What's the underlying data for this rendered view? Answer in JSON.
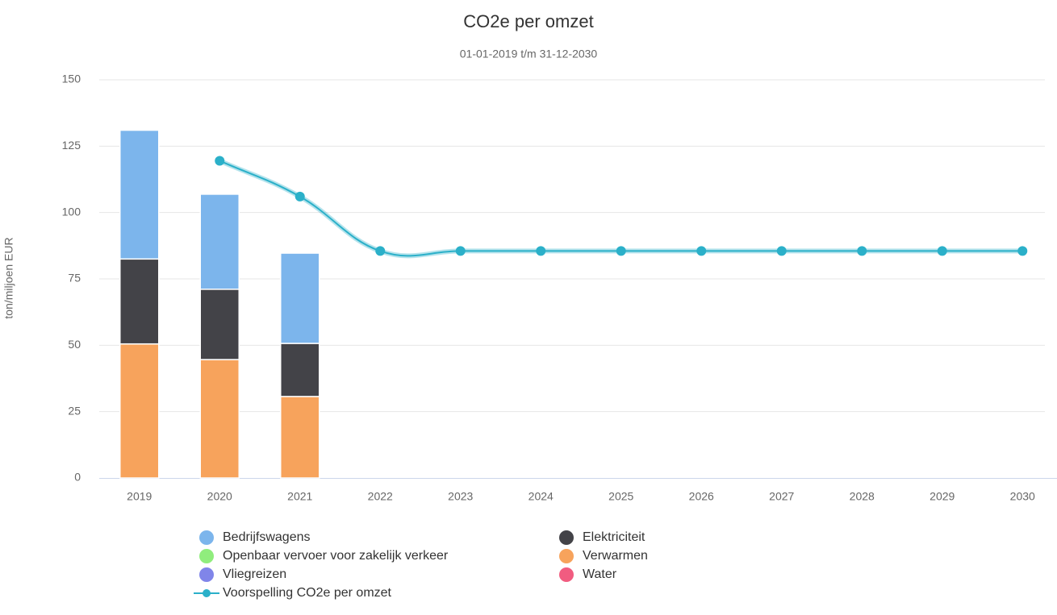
{
  "chart_data": {
    "type": "bar",
    "stacked": true,
    "title": "CO2e per omzet",
    "subtitle": "01-01-2019 t/m 31-12-2030",
    "y_label": "ton/miljoen EUR",
    "categories": [
      "2019",
      "2020",
      "2021",
      "2022",
      "2023",
      "2024",
      "2025",
      "2026",
      "2027",
      "2028",
      "2029",
      "2030"
    ],
    "ylim": [
      0,
      150
    ],
    "yticks": [
      0,
      25,
      50,
      75,
      100,
      125,
      150
    ],
    "grid": true,
    "series": [
      {
        "name": "Bedrijfswagens",
        "color": "#7cb5ec",
        "values": [
          48.5,
          35.8,
          34,
          null,
          null,
          null,
          null,
          null,
          null,
          null,
          null,
          null
        ]
      },
      {
        "name": "Elektriciteit",
        "color": "#434348",
        "values": [
          32,
          26.5,
          20,
          null,
          null,
          null,
          null,
          null,
          null,
          null,
          null,
          null
        ]
      },
      {
        "name": "Openbaar vervoer voor zakelijk verkeer",
        "color": "#90ed7d",
        "values": [
          null,
          null,
          null,
          null,
          null,
          null,
          null,
          null,
          null,
          null,
          null,
          null
        ]
      },
      {
        "name": "Verwarmen",
        "color": "#f7a35c",
        "values": [
          50.5,
          44.6,
          30.7,
          null,
          null,
          null,
          null,
          null,
          null,
          null,
          null,
          null
        ]
      },
      {
        "name": "Vliegreizen",
        "color": "#8085e9",
        "values": [
          null,
          null,
          null,
          null,
          null,
          null,
          null,
          null,
          null,
          null,
          null,
          null
        ]
      },
      {
        "name": "Water",
        "color": "#f15c80",
        "values": [
          null,
          null,
          null,
          null,
          null,
          null,
          null,
          null,
          null,
          null,
          null,
          null
        ]
      },
      {
        "name": "Voorspelling CO2e per omzet",
        "type": "line",
        "color": "#2bb0c9",
        "values": [
          null,
          119.5,
          106,
          85.5,
          85.5,
          85.5,
          85.5,
          85.5,
          85.5,
          85.5,
          85.5,
          85.5
        ]
      }
    ]
  }
}
